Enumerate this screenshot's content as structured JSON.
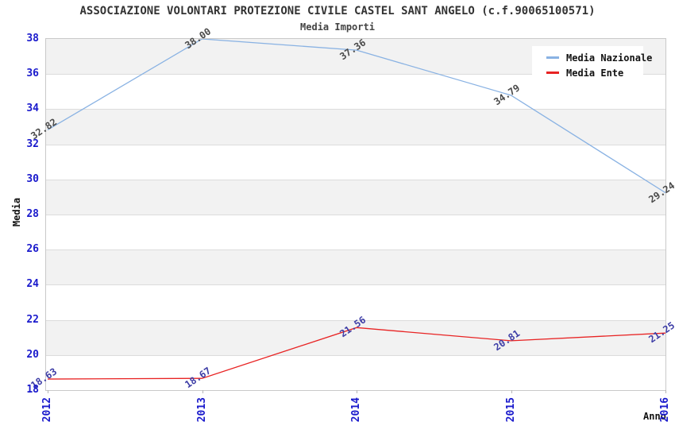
{
  "title": "ASSOCIAZIONE VOLONTARI PROTEZIONE CIVILE CASTEL SANT ANGELO (c.f.90065100571)",
  "subtitle": "Media Importi",
  "chart_data": {
    "type": "line",
    "categories": [
      "2012",
      "2013",
      "2014",
      "2015",
      "2016"
    ],
    "series": [
      {
        "name": "Media Nazionale",
        "color": "#89b2e3",
        "label_color": "#4a4a4a",
        "values": [
          32.82,
          38.0,
          37.36,
          34.79,
          29.24
        ],
        "labels": [
          "32.82",
          "38.00",
          "37.36",
          "34.79",
          "29.24"
        ]
      },
      {
        "name": "Media Ente",
        "color": "#e82323",
        "label_color": "#3d3da6",
        "values": [
          18.63,
          18.67,
          21.56,
          20.81,
          21.25
        ],
        "labels": [
          "18.63",
          "18.67",
          "21.56",
          "20.81",
          "21.25"
        ]
      }
    ],
    "xlabel": "Anno",
    "ylabel": "Media",
    "ylim": [
      18,
      38
    ],
    "ytick_step": 2,
    "ytick_labels": [
      "18",
      "20",
      "22",
      "24",
      "26",
      "28",
      "30",
      "32",
      "34",
      "36",
      "38"
    ],
    "grid": true,
    "band_colors": [
      "#f2f2f2",
      "#ffffff"
    ],
    "gridline_color": "#dcdcdc",
    "border_color": "#c9c9c9",
    "tick_label_color": "#1a1acc",
    "legend_position": "top-right"
  }
}
